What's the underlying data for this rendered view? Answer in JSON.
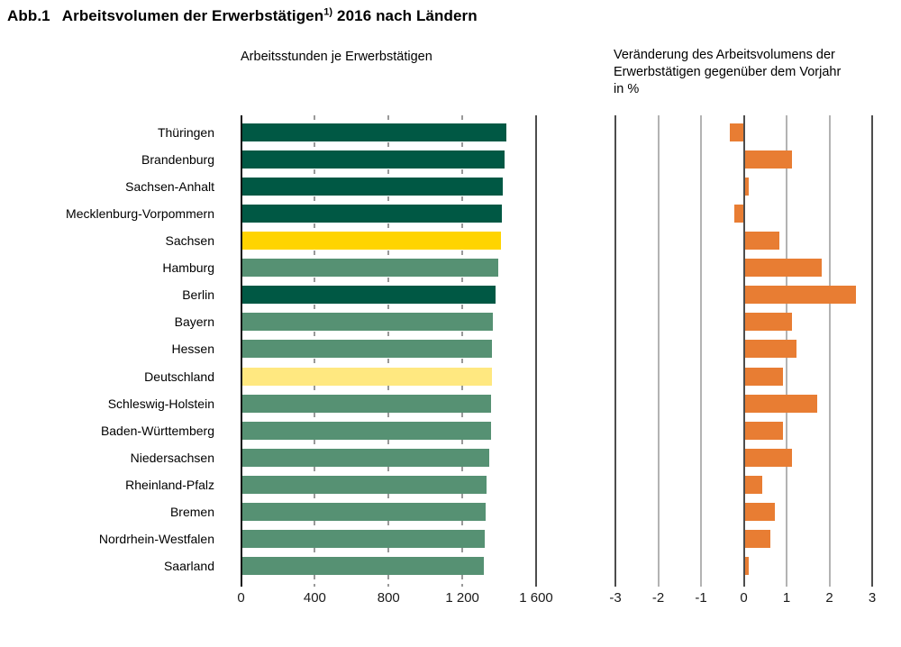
{
  "title": {
    "prefix": "Abb.1",
    "main": "Arbeitsvolumen der Erwerbstätigen",
    "footnote_marker": "1)",
    "suffix": " 2016 nach Ländern"
  },
  "header": {
    "left_subtitle": "Arbeitsstunden je Erwerbstätigen",
    "right_subtitle_lines": [
      "Veränderung des Arbeitsvolumens der",
      "Erwerbstätigen gegenüber dem Vorjahr",
      "in %"
    ]
  },
  "colors": {
    "dark_green": "#005844",
    "medium_green": "#569173",
    "yellow": "#FFD400",
    "light_yellow": "#FFE880",
    "orange": "#E87D33",
    "axis": "#111111",
    "border": "#4d4d4d",
    "grid_light": "#b3b3b3",
    "grid_dashed": "#999999"
  },
  "chart_data": [
    {
      "type": "bar",
      "orientation": "horizontal",
      "title": "Arbeitsstunden je Erwerbstätigen",
      "categories": [
        "Thüringen",
        "Brandenburg",
        "Sachsen-Anhalt",
        "Mecklenburg-Vorpommern",
        "Sachsen",
        "Hamburg",
        "Berlin",
        "Bayern",
        "Hessen",
        "Deutschland",
        "Schleswig-Holstein",
        "Baden-Württemberg",
        "Niedersachsen",
        "Rheinland-Pfalz",
        "Bremen",
        "Nordrhein-Westfalen",
        "Saarland"
      ],
      "values": [
        1434,
        1424,
        1415,
        1410,
        1405,
        1390,
        1377,
        1360,
        1357,
        1354,
        1352,
        1350,
        1342,
        1328,
        1321,
        1318,
        1312
      ],
      "bar_color_keys": [
        "dark_green",
        "dark_green",
        "dark_green",
        "dark_green",
        "yellow",
        "medium_green",
        "dark_green",
        "medium_green",
        "medium_green",
        "light_yellow",
        "medium_green",
        "medium_green",
        "medium_green",
        "medium_green",
        "medium_green",
        "medium_green",
        "medium_green"
      ],
      "xlim": [
        0,
        1600
      ],
      "xticks": [
        0,
        400,
        800,
        1200,
        1600
      ],
      "xtick_labels": [
        "0",
        "400",
        "800",
        "1 200",
        "1 600"
      ],
      "grid": "dashed vertical at 400/800/1200, solid borders at 0 and 1600",
      "legend": "none"
    },
    {
      "type": "bar",
      "orientation": "horizontal",
      "title": "Veränderung des Arbeitsvolumens der Erwerbstätigen gegenüber dem Vorjahr in %",
      "categories": [
        "Thüringen",
        "Brandenburg",
        "Sachsen-Anhalt",
        "Mecklenburg-Vorpommern",
        "Sachsen",
        "Hamburg",
        "Berlin",
        "Bayern",
        "Hessen",
        "Deutschland",
        "Schleswig-Holstein",
        "Baden-Württemberg",
        "Niedersachsen",
        "Rheinland-Pfalz",
        "Bremen",
        "Nordrhein-Westfalen",
        "Saarland"
      ],
      "values": [
        -0.3,
        1.1,
        0.1,
        -0.2,
        0.8,
        1.8,
        2.6,
        1.1,
        1.2,
        0.9,
        1.7,
        0.9,
        1.1,
        0.4,
        0.7,
        0.6,
        0.1
      ],
      "bar_color_keys": [
        "orange",
        "orange",
        "orange",
        "orange",
        "orange",
        "orange",
        "orange",
        "orange",
        "orange",
        "orange",
        "orange",
        "orange",
        "orange",
        "orange",
        "orange",
        "orange",
        "orange"
      ],
      "xlim": [
        -3,
        3
      ],
      "xticks": [
        -3,
        -2,
        -1,
        0,
        1,
        2,
        3
      ],
      "xtick_labels": [
        "-3",
        "-2",
        "-1",
        "0",
        "1",
        "2",
        "3"
      ],
      "grid": "solid vertical at each integer, dark borders at -3 and 3, dark zero line",
      "legend": "none"
    }
  ]
}
